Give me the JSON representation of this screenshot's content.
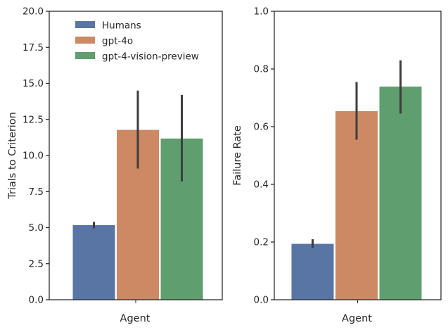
{
  "chart_data": [
    {
      "type": "bar",
      "categories": [
        "Agent"
      ],
      "xlabel": "Agent",
      "ylabel": "Trials to Criterion",
      "ylim": [
        0,
        20
      ],
      "yticks": [
        "0.0",
        "2.5",
        "5.0",
        "7.5",
        "10.0",
        "12.5",
        "15.0",
        "17.5",
        "20.0"
      ],
      "ytick_values": [
        0,
        2.5,
        5,
        7.5,
        10,
        12.5,
        15,
        17.5,
        20
      ],
      "legend": "top-left",
      "grid": false,
      "series": [
        {
          "name": "Humans",
          "color": "#5875a4",
          "values": [
            5.2
          ],
          "err_low": [
            4.95
          ],
          "err_high": [
            5.4
          ]
        },
        {
          "name": "gpt-4o",
          "color": "#cc8963",
          "values": [
            11.8
          ],
          "err_low": [
            9.1
          ],
          "err_high": [
            14.5
          ]
        },
        {
          "name": "gpt-4-vision-preview",
          "color": "#5f9e6e",
          "values": [
            11.2
          ],
          "err_low": [
            8.2
          ],
          "err_high": [
            14.2
          ]
        }
      ]
    },
    {
      "type": "bar",
      "categories": [
        "Agent"
      ],
      "xlabel": "Agent",
      "ylabel": "Failure Rate",
      "ylim": [
        0,
        1
      ],
      "yticks": [
        "0.0",
        "0.2",
        "0.4",
        "0.6",
        "0.8",
        "1.0"
      ],
      "ytick_values": [
        0,
        0.2,
        0.4,
        0.6,
        0.8,
        1.0
      ],
      "grid": false,
      "series": [
        {
          "name": "Humans",
          "color": "#5875a4",
          "values": [
            0.195
          ],
          "err_low": [
            0.18
          ],
          "err_high": [
            0.21
          ]
        },
        {
          "name": "gpt-4o",
          "color": "#cc8963",
          "values": [
            0.655
          ],
          "err_low": [
            0.555
          ],
          "err_high": [
            0.755
          ]
        },
        {
          "name": "gpt-4-vision-preview",
          "color": "#5f9e6e",
          "values": [
            0.74
          ],
          "err_low": [
            0.645
          ],
          "err_high": [
            0.83
          ]
        }
      ]
    }
  ],
  "colors": {
    "axis": "#262626",
    "errorbar": "#3d3d3d",
    "background": "#ffffff"
  }
}
